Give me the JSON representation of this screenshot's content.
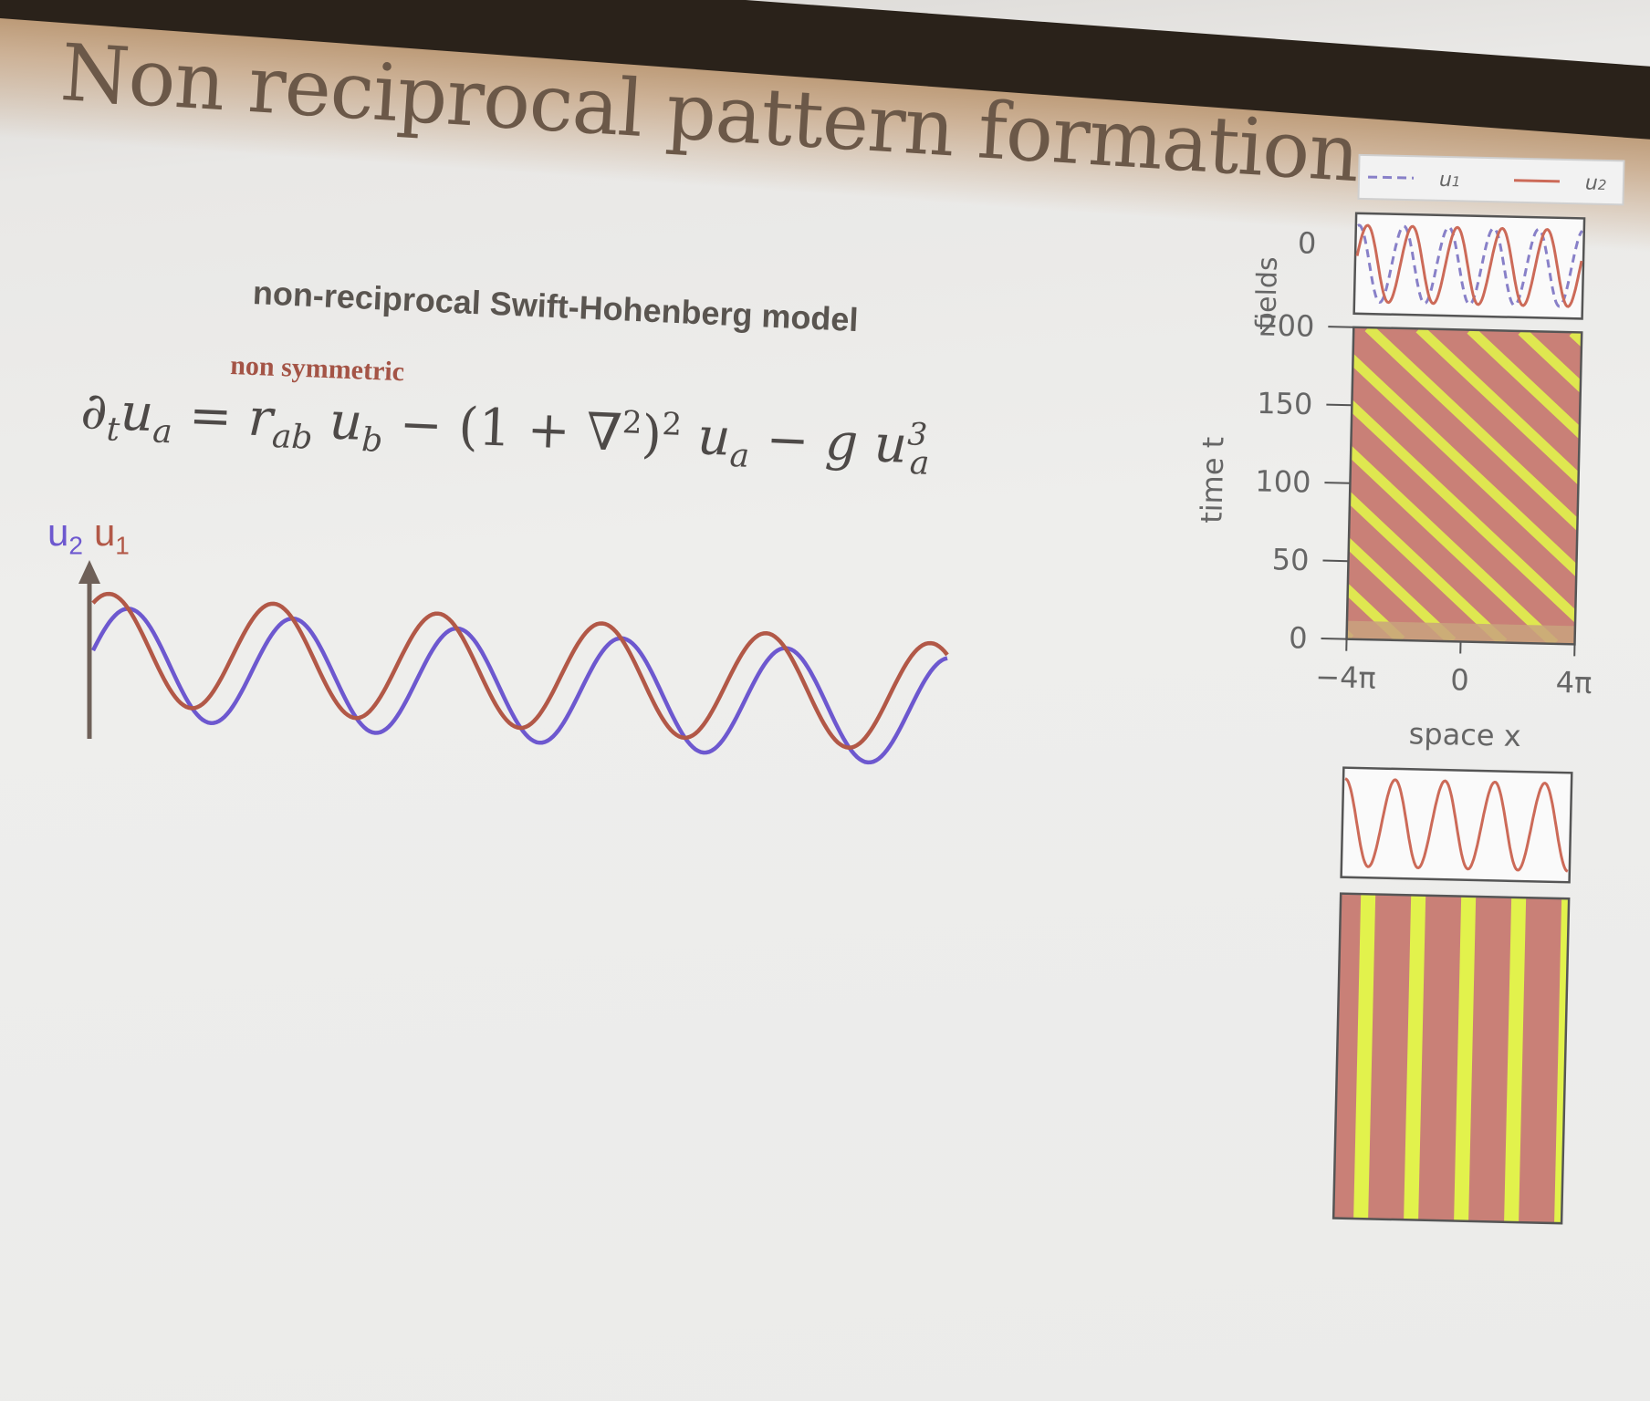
{
  "slide": {
    "title": "Non reciprocal pattern formation",
    "subtitle": "non-reciprocal Swift-Hohenberg model",
    "annotation": "non symmetric",
    "equation": {
      "lhs_op": "∂",
      "lhs_op_sub": "t",
      "lhs_var": "u",
      "lhs_var_sub": "a",
      "eq": " = ",
      "r": "r",
      "r_sub": "ab",
      "ub": "u",
      "ub_sub": "b",
      "mid": " − (1 + ∇",
      "mid_sup": "2",
      "paren_close": ")",
      "paren_sup": "2",
      "ua": "u",
      "ua_sub": "a",
      "minus_g": " − g ",
      "uc": "u",
      "uc_sub": "a",
      "uc_sup": "3"
    },
    "wave_legend": {
      "u2": "u",
      "u2_sub": "2",
      "u1": "u",
      "u1_sub": "1"
    },
    "colors": {
      "u1": "#b25847",
      "u2": "#6d58cf",
      "axis_arrow": "#6e6058"
    }
  },
  "chart_data": [
    {
      "type": "line",
      "panel": "fields",
      "ylabel": "fields",
      "yticks": [
        "0"
      ],
      "legend": [
        {
          "name": "u1",
          "sub": "1",
          "style": "dashed",
          "color": "#8880c8"
        },
        {
          "name": "u2",
          "sub": "2",
          "style": "solid",
          "color": "#cc6a58"
        }
      ],
      "x_range": [
        "-4π",
        "4π"
      ],
      "series": [
        {
          "name": "u1",
          "periods": 5
        },
        {
          "name": "u2",
          "periods": 5
        }
      ]
    },
    {
      "type": "heatmap",
      "panel": "spacetime-traveling",
      "xlabel": "space x",
      "ylabel": "time t",
      "xticks": [
        "−4π",
        "0",
        "4π"
      ],
      "yticks": [
        "0",
        "50",
        "100",
        "150",
        "200"
      ],
      "ylim": [
        0,
        200
      ],
      "pattern": "diagonal-stripes",
      "colors": [
        "#c98077",
        "#e2f24c"
      ]
    },
    {
      "type": "line",
      "panel": "fields-stationary",
      "series": [
        {
          "name": "u",
          "periods": 4.5,
          "color": "#cc6a58"
        }
      ]
    },
    {
      "type": "heatmap",
      "panel": "spacetime-stationary",
      "pattern": "vertical-stripes",
      "colors": [
        "#c98077",
        "#e2f24c"
      ]
    }
  ]
}
